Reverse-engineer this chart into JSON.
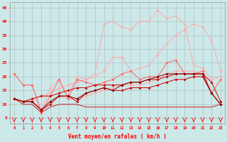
{
  "x": [
    0,
    1,
    2,
    3,
    4,
    5,
    6,
    7,
    8,
    9,
    10,
    11,
    12,
    13,
    14,
    15,
    16,
    17,
    18,
    19,
    20,
    21,
    22,
    23
  ],
  "line_top": [
    21,
    17,
    17,
    8,
    16,
    19,
    13,
    20,
    19,
    21,
    39,
    40,
    38,
    37,
    40,
    40,
    44,
    41,
    42,
    39,
    24,
    23,
    19,
    20
  ],
  "line_upper_band": [
    12,
    11,
    11,
    13,
    14,
    16,
    17,
    18,
    19,
    20,
    22,
    27,
    27,
    22,
    23,
    24,
    28,
    32,
    35,
    37,
    39,
    38,
    33,
    22
  ],
  "line_lower_band": [
    12,
    11,
    11,
    7,
    11,
    13,
    12,
    12,
    13,
    14,
    15,
    16,
    17,
    17,
    17,
    18,
    19,
    21,
    22,
    22,
    22,
    21,
    14,
    10
  ],
  "line_mid1": [
    21,
    17,
    17,
    7,
    13,
    19,
    12,
    19,
    18,
    17,
    18,
    19,
    21,
    22,
    19,
    20,
    20,
    25,
    26,
    21,
    21,
    22,
    14,
    19
  ],
  "line_mid2": [
    12,
    11,
    12,
    13,
    13,
    14,
    15,
    16,
    16,
    17,
    17,
    17,
    17,
    18,
    18,
    19,
    19,
    20,
    21,
    21,
    21,
    21,
    18,
    11
  ],
  "line_mid3": [
    12,
    11,
    11,
    8,
    10,
    13,
    13,
    11,
    14,
    15,
    16,
    15,
    15,
    16,
    16,
    16,
    17,
    18,
    19,
    19,
    20,
    20,
    14,
    10
  ],
  "line_dark": [
    12,
    11,
    11,
    8,
    11,
    13,
    13,
    12,
    14,
    15,
    16,
    15,
    17,
    18,
    18,
    19,
    20,
    21,
    21,
    21,
    21,
    21,
    14,
    10
  ],
  "line_bottom": [
    12,
    10,
    10,
    7,
    9,
    10,
    10,
    10,
    9,
    9,
    9,
    9,
    9,
    9,
    9,
    9,
    9,
    9,
    9,
    9,
    9,
    9,
    9,
    10
  ],
  "bg_color": "#cce8e8",
  "grid_color": "#aabbbb",
  "color_light": "#ffaaaa",
  "color_mid": "#ff6666",
  "color_dark": "#cc0000",
  "color_darkest": "#880000",
  "xlabel": "Vent moyen/en rafales ( km/h )",
  "ylim": [
    3,
    47
  ],
  "xlim": [
    -0.5,
    23.5
  ],
  "yticks": [
    5,
    10,
    15,
    20,
    25,
    30,
    35,
    40,
    45
  ],
  "xticks": [
    0,
    1,
    2,
    3,
    4,
    5,
    6,
    7,
    8,
    9,
    10,
    11,
    12,
    13,
    14,
    15,
    16,
    17,
    18,
    19,
    20,
    21,
    22,
    23
  ]
}
